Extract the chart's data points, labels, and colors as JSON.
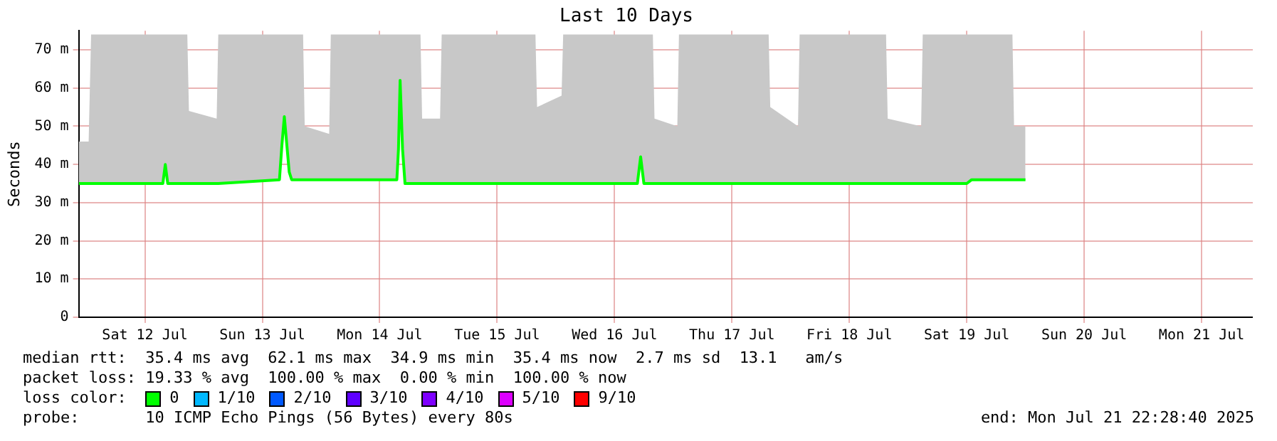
{
  "chart_data": {
    "type": "line",
    "title": "Last 10 Days",
    "ylabel": "Seconds",
    "legend_title": "loss color:",
    "legend": "bottom",
    "grid": true,
    "xlim": [
      "2025-07-11T22:28",
      "2025-07-21T22:28"
    ],
    "xticks": [
      {
        "value": "2025-07-12T12:00",
        "label": "Sat 12 Jul"
      },
      {
        "value": "2025-07-13T12:00",
        "label": "Sun 13 Jul"
      },
      {
        "value": "2025-07-14T12:00",
        "label": "Mon 14 Jul"
      },
      {
        "value": "2025-07-15T12:00",
        "label": "Tue 15 Jul"
      },
      {
        "value": "2025-07-16T12:00",
        "label": "Wed 16 Jul"
      },
      {
        "value": "2025-07-17T12:00",
        "label": "Thu 17 Jul"
      },
      {
        "value": "2025-07-18T12:00",
        "label": "Fri 18 Jul"
      },
      {
        "value": "2025-07-19T12:00",
        "label": "Sat 19 Jul"
      },
      {
        "value": "2025-07-20T12:00",
        "label": "Sun 20 Jul"
      },
      {
        "value": "2025-07-21T12:00",
        "label": "Mon 21 Jul"
      }
    ],
    "ylim": [
      0,
      75
    ],
    "yticks": [
      0,
      {
        "value": 10,
        "label": "10 m"
      },
      {
        "value": 20,
        "label": "20 m"
      },
      {
        "value": 30,
        "label": "30 m"
      },
      {
        "value": 40,
        "label": "40 m"
      },
      {
        "value": 50,
        "label": "50 m"
      },
      {
        "value": 60,
        "label": "60 m"
      },
      {
        "value": 70,
        "label": "70 m"
      }
    ],
    "series": [
      {
        "name": "0",
        "color": "#00ff00",
        "x": [
          "2025-07-11T22:30",
          "2025-07-12T00:30",
          "2025-07-12T01:00",
          "2025-07-12T15:40",
          "2025-07-12T16:10",
          "2025-07-12T16:40",
          "2025-07-12T20:40",
          "2025-07-12T21:00",
          "2025-07-13T02:40",
          "2025-07-13T03:00",
          "2025-07-13T15:30",
          "2025-07-13T16:00",
          "2025-07-13T16:30",
          "2025-07-13T17:30",
          "2025-07-13T18:00",
          "2025-07-13T20:20",
          "2025-07-13T20:40",
          "2025-07-14T01:40",
          "2025-07-14T02:00",
          "2025-07-14T15:30",
          "2025-07-14T15:50",
          "2025-07-14T16:10",
          "2025-07-14T16:40",
          "2025-07-14T17:10",
          "2025-07-14T20:20",
          "2025-07-14T20:40",
          "2025-07-15T00:20",
          "2025-07-15T00:40",
          "2025-07-15T19:50",
          "2025-07-15T20:10",
          "2025-07-16T01:10",
          "2025-07-16T01:30",
          "2025-07-16T16:40",
          "2025-07-16T17:20",
          "2025-07-16T18:00",
          "2025-07-16T19:50",
          "2025-07-16T20:10",
          "2025-07-17T00:50",
          "2025-07-17T01:10",
          "2025-07-17T19:30",
          "2025-07-17T19:50",
          "2025-07-18T01:30",
          "2025-07-18T01:50",
          "2025-07-18T19:30",
          "2025-07-18T19:50",
          "2025-07-19T02:40",
          "2025-07-19T03:00",
          "2025-07-19T12:00",
          "2025-07-19T13:00",
          "2025-07-19T21:20",
          "2025-07-19T21:40",
          "2025-07-20T00:00"
        ],
        "values": [
          35,
          35,
          35,
          35,
          40,
          35,
          35,
          35,
          35,
          35,
          36,
          45,
          52.5,
          38,
          36,
          36,
          36,
          36,
          36,
          36,
          44,
          62,
          44,
          35,
          35,
          35,
          35,
          35,
          35,
          35,
          35,
          35,
          35,
          42,
          35,
          35,
          35,
          35,
          35,
          35,
          35,
          35,
          35,
          35,
          35,
          35,
          35,
          35,
          36,
          36,
          36,
          36
        ],
        "lower": [
          35,
          35,
          35,
          35,
          40,
          35,
          35,
          35,
          35,
          35,
          36,
          45,
          52.5,
          38,
          36,
          36,
          36,
          36,
          36,
          36,
          44,
          62,
          44,
          35,
          35,
          35,
          35,
          35,
          35,
          35,
          35,
          35,
          35,
          42,
          35,
          35,
          35,
          35,
          35,
          35,
          35,
          35,
          35,
          35,
          35,
          35,
          35,
          35,
          36,
          36,
          36,
          36
        ],
        "upper": [
          46,
          46,
          74,
          74,
          74,
          74,
          74,
          54,
          52,
          74,
          74,
          74,
          74,
          74,
          74,
          74,
          50,
          48,
          74,
          74,
          74,
          74,
          74,
          74,
          74,
          52,
          52,
          74,
          74,
          55,
          58,
          74,
          74,
          74,
          74,
          74,
          52,
          50,
          74,
          74,
          55,
          50,
          74,
          74,
          52,
          50,
          74,
          74,
          74,
          74,
          50,
          50
        ]
      },
      {
        "name": "1/10",
        "color": "#00b8ff"
      },
      {
        "name": "2/10",
        "color": "#0059ff"
      },
      {
        "name": "3/10",
        "color": "#5e00ff"
      },
      {
        "name": "4/10",
        "color": "#7e00ff"
      },
      {
        "name": "5/10",
        "color": "#dd00ff"
      },
      {
        "name": "9/10",
        "color": "#ff0000"
      }
    ],
    "annotations": [
      "median rtt:  35.4 ms avg  62.1 ms max  34.9 ms min  35.4 ms now  2.7 ms sd  13.1   am/s",
      "packet loss: 19.33 % avg  100.00 % max  0.00 % min  100.00 % now",
      "probe:       10 ICMP Echo Pings (56 Bytes) every 80s",
      "end: Mon Jul 21 22:28:40 2025"
    ]
  }
}
